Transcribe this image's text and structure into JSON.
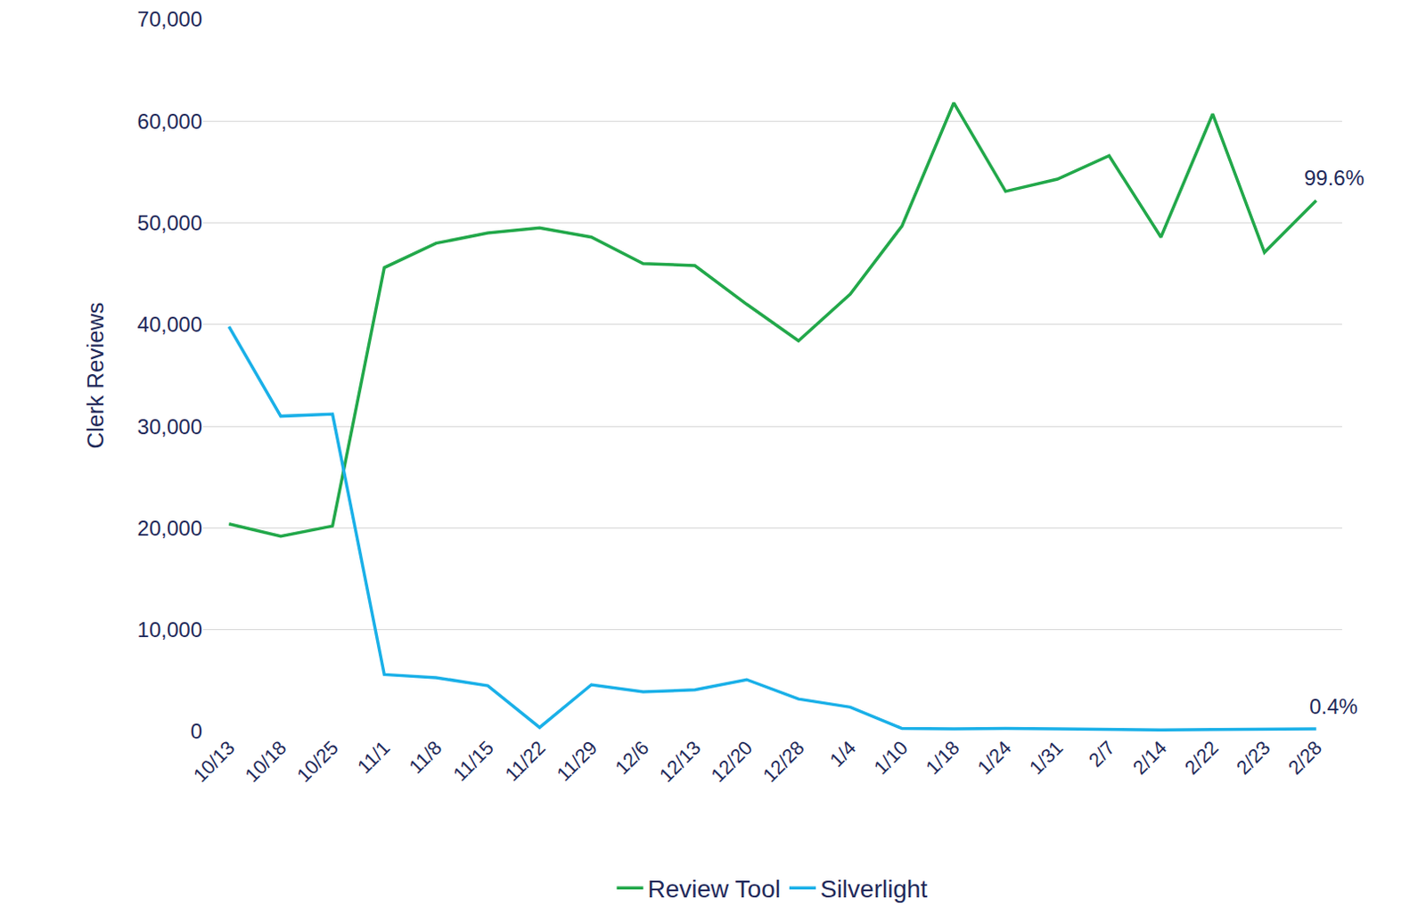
{
  "chart_data": {
    "type": "line",
    "y_label": "Clerk Reviews",
    "categories": [
      "10/13",
      "10/18",
      "10/25",
      "11/1",
      "11/8",
      "11/15",
      "11/22",
      "11/29",
      "12/6",
      "12/13",
      "12/20",
      "12/28",
      "1/4",
      "1/10",
      "1/18",
      "1/24",
      "1/31",
      "2/7",
      "2/14",
      "2/22",
      "2/23",
      "2/28"
    ],
    "series": [
      {
        "name": "Review Tool",
        "color": "#22a84a",
        "values": [
          20400,
          19200,
          20200,
          45600,
          48000,
          49000,
          49500,
          48600,
          46000,
          45800,
          42000,
          38400,
          43000,
          49700,
          61800,
          53100,
          54300,
          56600,
          48600,
          60700,
          47100,
          52200
        ]
      },
      {
        "name": "Silverlight",
        "color": "#1ab0e8",
        "values": [
          39800,
          31000,
          31200,
          5600,
          5300,
          4500,
          400,
          4600,
          3900,
          4100,
          5100,
          3200,
          2400,
          300,
          250,
          300,
          250,
          200,
          150,
          200,
          250,
          250
        ]
      }
    ],
    "annotations": [
      {
        "text": "99.6%",
        "category": "2/28",
        "series": "Review Tool"
      },
      {
        "text": "0.4%",
        "category": "2/28",
        "series": "Silverlight"
      }
    ],
    "ylim": [
      0,
      70000
    ],
    "yticks": [
      0,
      {
        "value": 10000,
        "label": "10,000"
      },
      {
        "value": 20000,
        "label": "20,000"
      },
      {
        "value": 30000,
        "label": "30,000"
      },
      {
        "value": 40000,
        "label": "40,000"
      },
      {
        "value": 50000,
        "label": "50,000"
      },
      {
        "value": 60000,
        "label": "60,000"
      },
      {
        "value": 70000,
        "label": "70,000"
      }
    ],
    "grid": true,
    "legend": "bottom"
  }
}
